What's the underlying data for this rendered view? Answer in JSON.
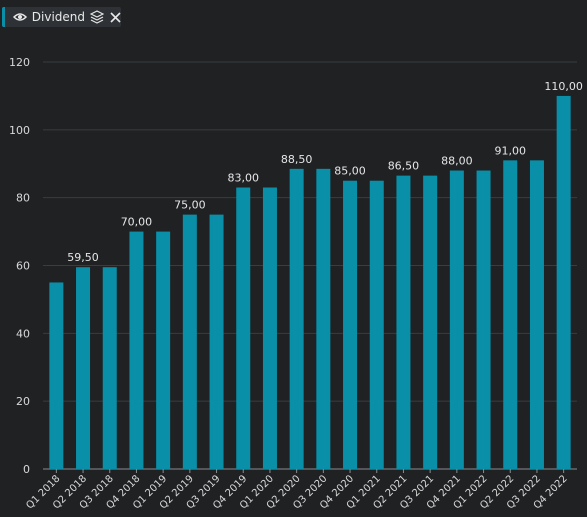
{
  "legend": {
    "label": "Dividend",
    "accent_color": "#0a8fa8",
    "icons": [
      "eye-icon",
      "layers-icon",
      "close-icon"
    ]
  },
  "colors": {
    "background": "#1f2123",
    "bar": "#0a8fa8",
    "grid": "#3a3d40",
    "text": "#d8d8d8"
  },
  "chart_data": {
    "type": "bar",
    "categories": [
      "Q1 2018",
      "Q2 2018",
      "Q3 2018",
      "Q4 2018",
      "Q1 2019",
      "Q2 2019",
      "Q3 2019",
      "Q4 2019",
      "Q1 2020",
      "Q2 2020",
      "Q3 2020",
      "Q4 2020",
      "Q1 2021",
      "Q2 2021",
      "Q3 2021",
      "Q4 2021",
      "Q1 2022",
      "Q2 2022",
      "Q3 2022",
      "Q4 2022"
    ],
    "series": [
      {
        "name": "Dividend",
        "values": [
          55,
          59.5,
          59.5,
          70,
          70,
          75,
          75,
          83,
          83,
          88.5,
          88.5,
          85,
          85,
          86.5,
          86.5,
          88,
          88,
          91,
          91,
          110
        ]
      }
    ],
    "data_labels": [
      null,
      "59,50",
      null,
      "70,00",
      null,
      "75,00",
      null,
      "83,00",
      null,
      "88,50",
      null,
      "85,00",
      null,
      "86,50",
      null,
      "88,00",
      null,
      "91,00",
      null,
      "110,00"
    ],
    "yticks": [
      0,
      20,
      40,
      60,
      80,
      100,
      120
    ],
    "ylim": [
      0,
      120
    ],
    "grid": true,
    "legend_position": "top-left",
    "title": "",
    "xlabel": "",
    "ylabel": ""
  }
}
